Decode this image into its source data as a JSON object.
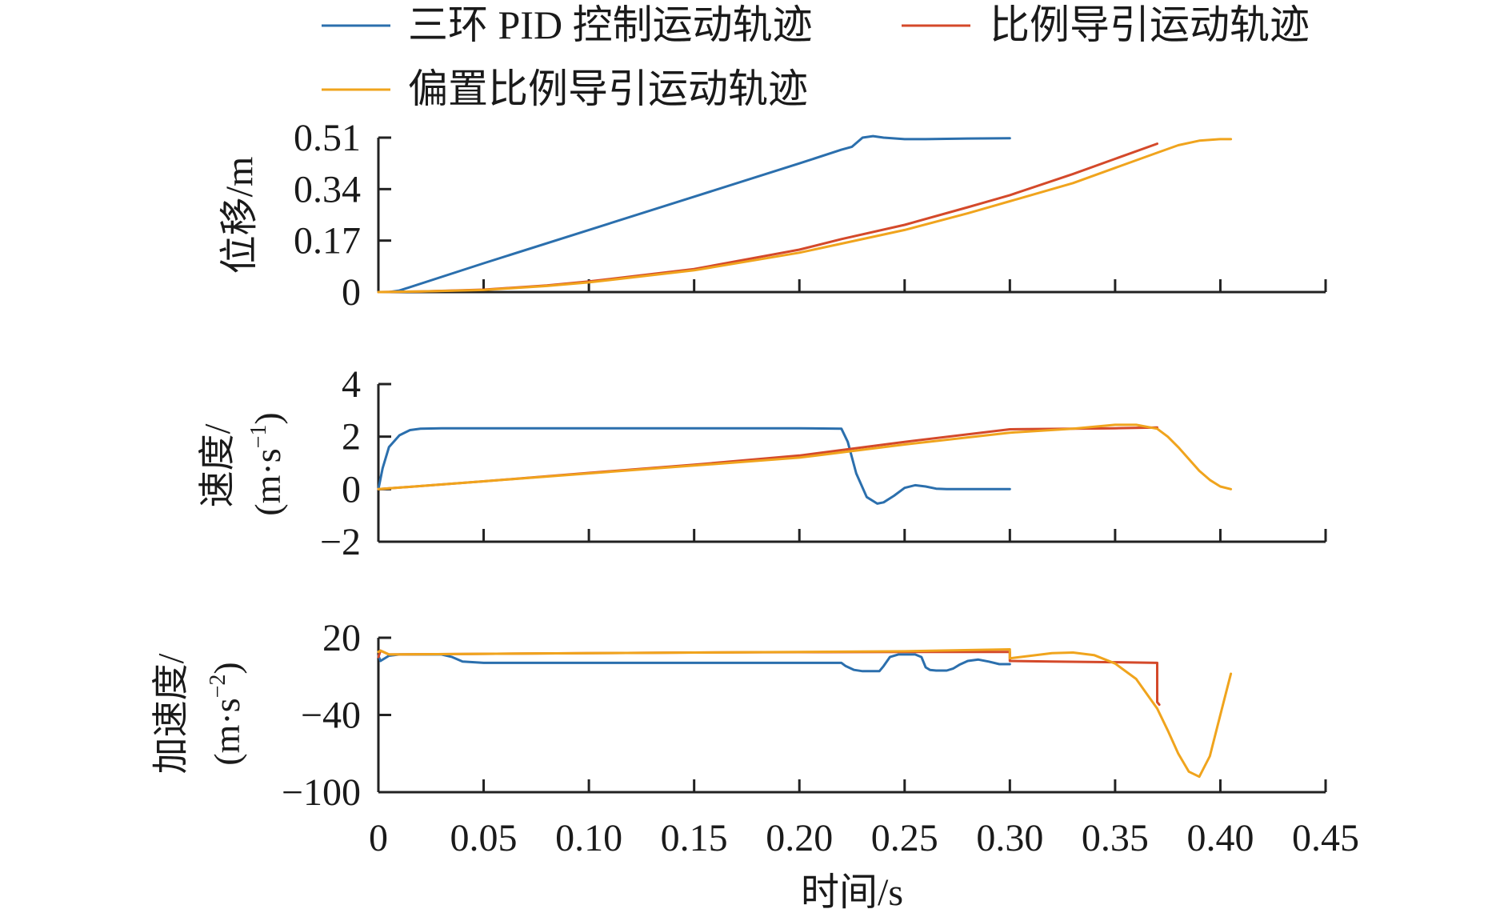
{
  "legend": {
    "placement": "top",
    "items": [
      {
        "label": "三环 PID 控制运动轨迹",
        "color": "#2b6fad"
      },
      {
        "label": "比例导引运动轨迹",
        "color": "#d4492a"
      },
      {
        "label": "偏置比例导引运动轨迹",
        "color": "#f0a41d"
      }
    ]
  },
  "chart_data": [
    {
      "type": "line",
      "ylabel": "位移/m",
      "xlabel": "",
      "xlim": [
        0,
        0.45
      ],
      "ylim": [
        0,
        0.51
      ],
      "yticks": [
        0,
        0.17,
        0.34,
        0.51
      ],
      "ytick_labels": [
        "0",
        "0.17",
        "0.34",
        "0.51"
      ],
      "xticks": [
        0,
        0.05,
        0.1,
        0.15,
        0.2,
        0.25,
        0.3,
        0.35,
        0.4,
        0.45
      ],
      "series": [
        {
          "name": "三环 PID 控制运动轨迹",
          "color": "#2b6fad",
          "x": [
            0,
            0.005,
            0.01,
            0.05,
            0.1,
            0.15,
            0.2,
            0.22,
            0.225,
            0.23,
            0.235,
            0.24,
            0.25,
            0.26,
            0.28,
            0.3
          ],
          "y": [
            0,
            0,
            0.005,
            0.095,
            0.205,
            0.315,
            0.425,
            0.47,
            0.48,
            0.51,
            0.515,
            0.51,
            0.505,
            0.505,
            0.507,
            0.508
          ]
        },
        {
          "name": "比例导引运动轨迹",
          "color": "#d4492a",
          "x": [
            0,
            0.02,
            0.05,
            0.08,
            0.1,
            0.15,
            0.2,
            0.22,
            0.25,
            0.28,
            0.3,
            0.33,
            0.35,
            0.37
          ],
          "y": [
            0,
            0.002,
            0.008,
            0.022,
            0.035,
            0.076,
            0.14,
            0.175,
            0.222,
            0.28,
            0.32,
            0.39,
            0.44,
            0.49
          ]
        },
        {
          "name": "偏置比例导引运动轨迹",
          "color": "#f0a41d",
          "x": [
            0,
            0.02,
            0.05,
            0.08,
            0.1,
            0.15,
            0.2,
            0.22,
            0.25,
            0.28,
            0.3,
            0.33,
            0.35,
            0.37,
            0.38,
            0.39,
            0.4,
            0.405
          ],
          "y": [
            0,
            0.002,
            0.007,
            0.02,
            0.032,
            0.072,
            0.13,
            0.16,
            0.205,
            0.26,
            0.3,
            0.36,
            0.41,
            0.46,
            0.485,
            0.5,
            0.505,
            0.505
          ]
        }
      ]
    },
    {
      "type": "line",
      "ylabel": "速度/",
      "ylabel_unit": "(m·s",
      "ylabel_sup": "−1",
      "ylabel_close": ")",
      "xlabel": "",
      "xlim": [
        0,
        0.45
      ],
      "ylim": [
        -2,
        4
      ],
      "yticks": [
        -2,
        0,
        2,
        4
      ],
      "ytick_labels": [
        "−2",
        "0",
        "2",
        "4"
      ],
      "xticks": [
        0,
        0.05,
        0.1,
        0.15,
        0.2,
        0.25,
        0.3,
        0.35,
        0.4,
        0.45
      ],
      "series": [
        {
          "name": "三环 PID 控制运动轨迹",
          "color": "#2b6fad",
          "x": [
            0,
            0.002,
            0.005,
            0.01,
            0.015,
            0.02,
            0.03,
            0.05,
            0.1,
            0.15,
            0.2,
            0.22,
            0.223,
            0.227,
            0.232,
            0.237,
            0.24,
            0.245,
            0.25,
            0.255,
            0.26,
            0.265,
            0.27,
            0.28,
            0.29,
            0.3
          ],
          "y": [
            0,
            0.8,
            1.6,
            2.05,
            2.25,
            2.3,
            2.32,
            2.32,
            2.32,
            2.32,
            2.32,
            2.3,
            1.8,
            0.6,
            -0.3,
            -0.55,
            -0.5,
            -0.25,
            0.05,
            0.15,
            0.1,
            0.02,
            0,
            0,
            0,
            0
          ]
        },
        {
          "name": "比例导引运动轨迹",
          "color": "#d4492a",
          "x": [
            0,
            0.05,
            0.1,
            0.15,
            0.2,
            0.25,
            0.3,
            0.33,
            0.35,
            0.37
          ],
          "y": [
            0,
            0.3,
            0.62,
            0.93,
            1.28,
            1.8,
            2.28,
            2.3,
            2.32,
            2.35
          ]
        },
        {
          "name": "偏置比例导引运动轨迹",
          "color": "#f0a41d",
          "x": [
            0,
            0.05,
            0.1,
            0.15,
            0.2,
            0.25,
            0.3,
            0.33,
            0.35,
            0.36,
            0.37,
            0.375,
            0.38,
            0.385,
            0.39,
            0.395,
            0.4,
            0.405
          ],
          "y": [
            0,
            0.3,
            0.6,
            0.9,
            1.2,
            1.7,
            2.15,
            2.3,
            2.45,
            2.45,
            2.3,
            2.0,
            1.6,
            1.15,
            0.7,
            0.35,
            0.1,
            0.0
          ]
        }
      ]
    },
    {
      "type": "line",
      "ylabel": "加速度/",
      "ylabel_unit": "(m·s",
      "ylabel_sup": "−2",
      "ylabel_close": ")",
      "xlabel": "时间/s",
      "xlim": [
        0,
        0.45
      ],
      "ylim": [
        -100,
        20
      ],
      "yticks": [
        -100,
        -40,
        20
      ],
      "ytick_labels": [
        "−100",
        "−40",
        "20"
      ],
      "xticks": [
        0,
        0.05,
        0.1,
        0.15,
        0.2,
        0.25,
        0.3,
        0.35,
        0.4,
        0.45
      ],
      "xtick_labels": [
        "0",
        "0.05",
        "0.10",
        "0.15",
        "0.20",
        "0.25",
        "0.30",
        "0.35",
        "0.40",
        "0.45"
      ],
      "series": [
        {
          "name": "三环 PID 控制运动轨迹",
          "color": "#2b6fad",
          "x": [
            0,
            0.001,
            0.005,
            0.01,
            0.02,
            0.03,
            0.035,
            0.04,
            0.05,
            0.1,
            0.15,
            0.2,
            0.22,
            0.222,
            0.226,
            0.23,
            0.235,
            0.238,
            0.24,
            0.243,
            0.247,
            0.25,
            0.255,
            0.258,
            0.26,
            0.262,
            0.265,
            0.27,
            0.273,
            0.276,
            0.28,
            0.285,
            0.29,
            0.295,
            0.3
          ],
          "y": [
            6,
            2,
            6,
            7,
            7,
            7,
            5,
            1.5,
            0.5,
            0.5,
            0.5,
            0.5,
            0.5,
            -2,
            -5,
            -6,
            -6,
            -6,
            -2,
            5,
            7,
            7,
            7,
            5,
            -3,
            -5,
            -5.5,
            -5.5,
            -4,
            -1,
            2,
            3,
            1.5,
            -0.5,
            -0.5
          ]
        },
        {
          "name": "比例导引运动轨迹",
          "color": "#d4492a",
          "x": [
            0,
            0.001,
            0.005,
            0.05,
            0.1,
            0.15,
            0.2,
            0.25,
            0.3,
            0.3,
            0.32,
            0.35,
            0.37,
            0.37,
            0.371
          ],
          "y": [
            5,
            10,
            7,
            7.5,
            8,
            8.5,
            8.8,
            9,
            9,
            2,
            1.5,
            1,
            0.5,
            -30,
            -32
          ]
        },
        {
          "name": "偏置比例导引运动轨迹",
          "color": "#f0a41d",
          "x": [
            0,
            0.001,
            0.005,
            0.05,
            0.1,
            0.15,
            0.2,
            0.25,
            0.3,
            0.3,
            0.31,
            0.32,
            0.33,
            0.34,
            0.35,
            0.36,
            0.37,
            0.375,
            0.38,
            0.385,
            0.39,
            0.395,
            0.4,
            0.405
          ],
          "y": [
            9,
            10,
            7,
            7.5,
            8,
            8.5,
            9,
            9.5,
            11,
            4,
            6,
            8,
            8.5,
            6.5,
            0,
            -12,
            -35,
            -52,
            -70,
            -84,
            -88,
            -72,
            -40,
            -8
          ]
        }
      ]
    }
  ]
}
